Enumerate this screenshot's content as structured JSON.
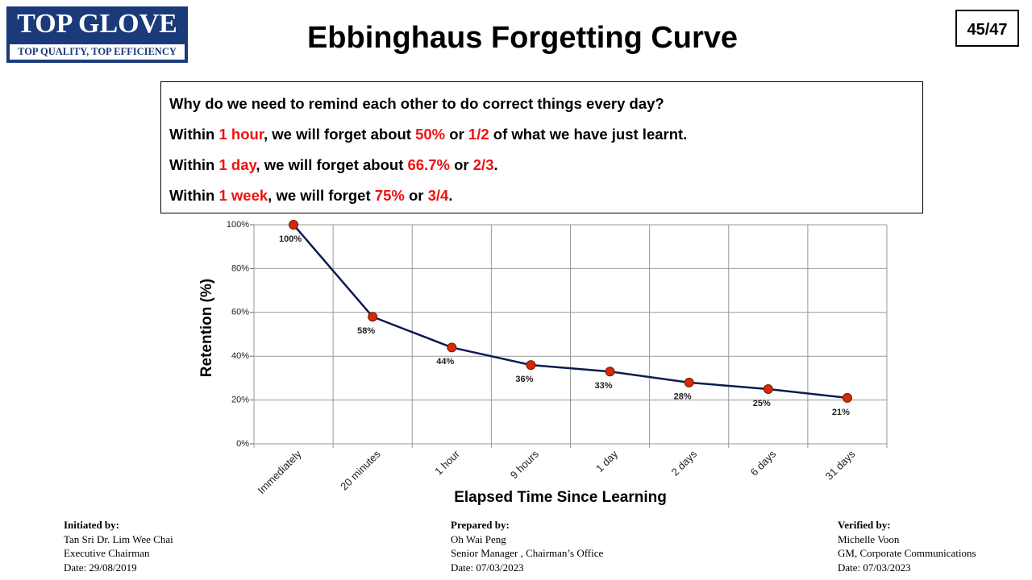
{
  "header": {
    "logo": "TOP GLOVE",
    "logo_tagline": "TOP QUALITY, TOP EFFICIENCY",
    "title": "Ebbinghaus Forgetting Curve",
    "page_number": "45/47"
  },
  "note": {
    "lines": [
      [
        {
          "text": "Why do we need to remind each other to do correct things every day?",
          "color": "#000000"
        }
      ],
      [
        {
          "text": "Within ",
          "color": "#000000"
        },
        {
          "text": "1 hour",
          "color": "#ee1111"
        },
        {
          "text": ", we will forget about ",
          "color": "#000000"
        },
        {
          "text": "50%",
          "color": "#ee1111"
        },
        {
          "text": " or ",
          "color": "#000000"
        },
        {
          "text": "1/2",
          "color": "#ee1111"
        },
        {
          "text": " of what we have just learnt.",
          "color": "#000000"
        }
      ],
      [
        {
          "text": "Within ",
          "color": "#000000"
        },
        {
          "text": "1 day",
          "color": "#ee1111"
        },
        {
          "text": ", we will forget about ",
          "color": "#000000"
        },
        {
          "text": "66.7%",
          "color": "#ee1111"
        },
        {
          "text": " or ",
          "color": "#000000"
        },
        {
          "text": "2/3",
          "color": "#ee1111"
        },
        {
          "text": ".",
          "color": "#000000"
        }
      ],
      [
        {
          "text": "Within ",
          "color": "#000000"
        },
        {
          "text": "1 week",
          "color": "#ee1111"
        },
        {
          "text": ", we will forget ",
          "color": "#000000"
        },
        {
          "text": "75%",
          "color": "#ee1111"
        },
        {
          "text": " or ",
          "color": "#000000"
        },
        {
          "text": "3/4",
          "color": "#ee1111"
        },
        {
          "text": ".",
          "color": "#000000"
        }
      ]
    ]
  },
  "chart_data": {
    "type": "line",
    "x_label": "Elapsed Time Since Learning",
    "y_label": "Retention (%)",
    "categories": [
      "Immediately",
      "20 minutes",
      "1 hour",
      "9 hours",
      "1 day",
      "2 days",
      "6 days",
      "31 days"
    ],
    "series": [
      {
        "name": "Retention",
        "color": "#0d1b4f",
        "marker_color": "#d42a0a",
        "values": [
          100,
          58,
          44,
          36,
          33,
          28,
          25,
          21
        ],
        "value_labels": [
          "100%",
          "58%",
          "44%",
          "36%",
          "33%",
          "28%",
          "25%",
          "21%"
        ]
      }
    ],
    "ylim": [
      0,
      100
    ],
    "yticks": [
      {
        "value": 0,
        "label": "0%"
      },
      {
        "value": 20,
        "label": "20%"
      },
      {
        "value": 40,
        "label": "40%"
      },
      {
        "value": 60,
        "label": "60%"
      },
      {
        "value": 80,
        "label": "80%"
      },
      {
        "value": 100,
        "label": "100%"
      }
    ],
    "grid": true
  },
  "footer": {
    "columns": [
      {
        "heading": "Initiated by:",
        "lines": [
          "Tan Sri Dr. Lim Wee Chai",
          "Executive Chairman",
          "Date: 29/08/2019"
        ]
      },
      {
        "heading": "Prepared by:",
        "lines": [
          "Oh Wai Peng",
          "Senior Manager , Chairman’s Office",
          "Date: 07/03/2023"
        ]
      },
      {
        "heading": "Verified by:",
        "lines": [
          "Michelle Voon",
          "GM, Corporate Communications",
          "Date: 07/03/2023"
        ]
      }
    ]
  }
}
